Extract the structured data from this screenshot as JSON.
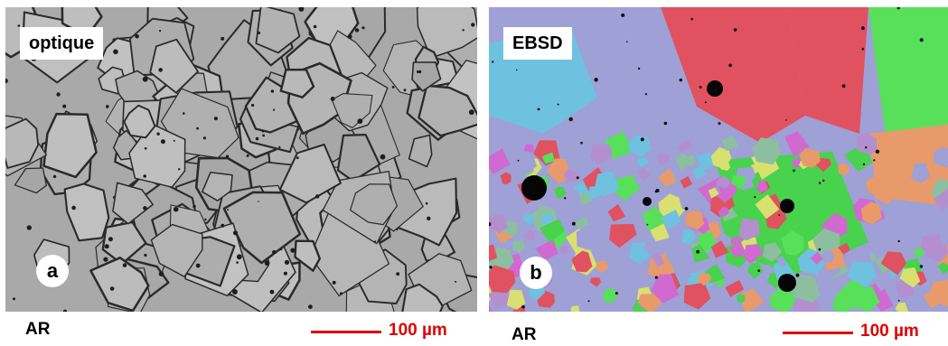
{
  "panel_a": {
    "tag": "optique",
    "letter": "a",
    "condition": "AR",
    "scale_label": "100 µm",
    "image": "optical-micrograph-grain-boundaries"
  },
  "panel_b": {
    "tag": "EBSD",
    "letter": "b",
    "condition": "AR",
    "scale_label": "100 µm",
    "image": "ebsd-orientation-map"
  },
  "colors": {
    "scale_bar": "#e00000",
    "label_bg": "#ffffff",
    "optical_bg": "#a9a9a9",
    "ebsd_palette": [
      "#9ea0d6",
      "#e0525f",
      "#48d24d",
      "#58e05a",
      "#e99a6a",
      "#d8e070",
      "#b38fcf",
      "#6fc1e0",
      "#d06ad0",
      "#8cbfa0"
    ]
  }
}
